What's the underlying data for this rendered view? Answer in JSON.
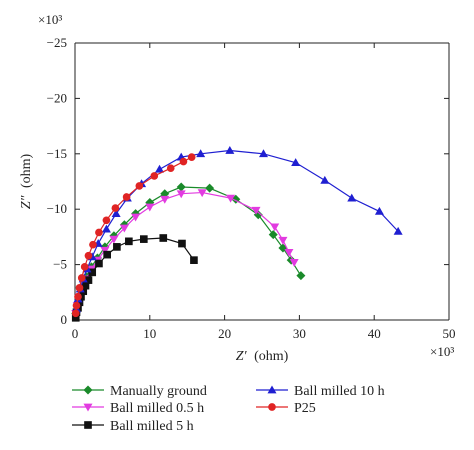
{
  "chart_data": {
    "type": "scatter",
    "title": "",
    "xlabel_var": "Z′",
    "xlabel_unit": "(ohm)",
    "ylabel_var": "Z″",
    "ylabel_unit": "(ohm)",
    "x_multiplier": "×10³",
    "y_multiplier": "×10³",
    "xlim": [
      0,
      50
    ],
    "ylim": [
      0,
      -25
    ],
    "xticks": [
      "0",
      "10",
      "20",
      "30",
      "40",
      "50"
    ],
    "yticks": [
      "0",
      "−5",
      "−10",
      "−15",
      "−20",
      "−25"
    ],
    "xtick_values": [
      0,
      10,
      20,
      30,
      40,
      50
    ],
    "ytick_values": [
      0,
      -5,
      -10,
      -15,
      -20,
      -25
    ],
    "grid": false,
    "legend_position": "bottom",
    "series": [
      {
        "name": "Manually ground",
        "color": "#1a8a2a",
        "marker": "diamond",
        "x": [
          0.1,
          0.3,
          0.6,
          1.0,
          1.5,
          2.2,
          3.0,
          4.0,
          5.2,
          6.6,
          8.1,
          10.0,
          12.0,
          14.2,
          18.0,
          21.5,
          24.5,
          26.5,
          27.8,
          28.9,
          30.2
        ],
        "y": [
          -0.6,
          -1.4,
          -2.2,
          -3.0,
          -3.9,
          -4.8,
          -5.6,
          -6.6,
          -7.6,
          -8.6,
          -9.6,
          -10.6,
          -11.4,
          -12.0,
          -11.9,
          -10.9,
          -9.5,
          -7.7,
          -6.5,
          -5.4,
          -4.0
        ]
      },
      {
        "name": "Ball milled 0.5 h",
        "color": "#e23be0",
        "marker": "triangle-down",
        "x": [
          0.1,
          0.3,
          0.6,
          1.0,
          1.5,
          2.2,
          3.0,
          4.0,
          5.2,
          6.6,
          8.1,
          10.0,
          12.0,
          14.2,
          17.0,
          20.8,
          24.2,
          26.7,
          27.8,
          28.6,
          29.3
        ],
        "y": [
          -0.6,
          -1.3,
          -2.1,
          -2.9,
          -3.7,
          -4.6,
          -5.4,
          -6.3,
          -7.3,
          -8.3,
          -9.3,
          -10.2,
          -10.9,
          -11.4,
          -11.5,
          -11.0,
          -9.9,
          -8.4,
          -7.2,
          -6.1,
          -5.2
        ]
      },
      {
        "name": "Ball milled 5 h",
        "color": "#111111",
        "marker": "square",
        "x": [
          0.1,
          0.2,
          0.4,
          0.6,
          0.8,
          1.1,
          1.4,
          1.8,
          2.3,
          3.2,
          4.3,
          5.6,
          7.2,
          9.2,
          11.8,
          14.3,
          15.9
        ],
        "y": [
          -0.2,
          -0.7,
          -1.1,
          -1.6,
          -2.1,
          -2.6,
          -3.1,
          -3.6,
          -4.3,
          -5.1,
          -5.9,
          -6.6,
          -7.1,
          -7.3,
          -7.4,
          -6.9,
          -5.4
        ]
      },
      {
        "name": "Ball milled 10 h",
        "color": "#1f1fd1",
        "marker": "triangle-up",
        "x": [
          0.2,
          0.4,
          0.7,
          1.1,
          1.6,
          2.3,
          3.1,
          4.2,
          5.5,
          7.0,
          8.9,
          11.3,
          14.2,
          16.8,
          20.7,
          25.2,
          29.5,
          33.4,
          37.0,
          40.7,
          43.2
        ],
        "y": [
          -1.0,
          -1.9,
          -2.8,
          -3.7,
          -4.6,
          -5.7,
          -6.9,
          -8.2,
          -9.6,
          -11.0,
          -12.3,
          -13.6,
          -14.7,
          -15.0,
          -15.3,
          -15.0,
          -14.2,
          -12.6,
          -11.0,
          -9.8,
          -8.0
        ]
      },
      {
        "name": "P25",
        "color": "#e02424",
        "marker": "circle",
        "x": [
          0.1,
          0.2,
          0.4,
          0.6,
          0.9,
          1.3,
          1.8,
          2.4,
          3.2,
          4.2,
          5.4,
          6.9,
          8.6,
          10.6,
          12.8,
          14.5,
          15.6
        ],
        "y": [
          -0.6,
          -1.3,
          -2.1,
          -2.9,
          -3.8,
          -4.8,
          -5.8,
          -6.8,
          -7.9,
          -9.0,
          -10.1,
          -11.1,
          -12.1,
          -13.0,
          -13.7,
          -14.3,
          -14.7
        ]
      }
    ]
  }
}
